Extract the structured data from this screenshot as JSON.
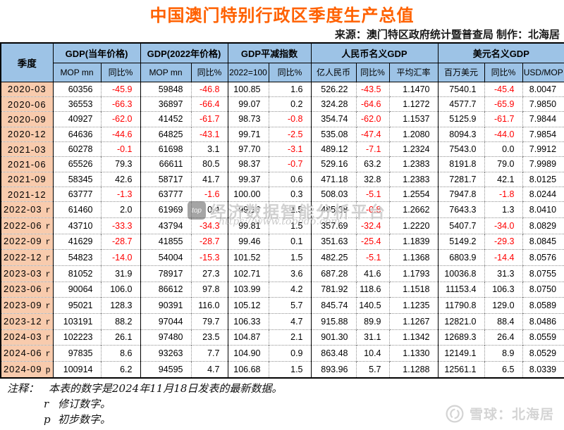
{
  "title": "中国澳门特别行政区季度生产总值",
  "source_line": "来源：澳门特区政府统计暨普查局  制作：北海居",
  "colors": {
    "title": "#FF6100",
    "header_bg": "#9DC3E6",
    "quarter_bg": "#F8CBAD",
    "negative": "#FF0000"
  },
  "chart_data": {
    "type": "table",
    "title": "中国澳门特别行政区季度生产总值",
    "quarter_header": "季度",
    "column_groups": [
      {
        "label": "GDP(当年价格)",
        "subs": [
          "MOP mn",
          "同比%"
        ]
      },
      {
        "label": "GDP(2022年价格)",
        "subs": [
          "MOP mn",
          "同比%"
        ]
      },
      {
        "label": "GDP平减指数",
        "subs": [
          "2022=100",
          "同比%"
        ]
      },
      {
        "label": "人民币名义GDP",
        "subs": [
          "亿人民币",
          "同比%",
          "平均汇率"
        ]
      },
      {
        "label": "美元名义GDP",
        "subs": [
          "百万美元",
          "同比%",
          "USD/MOP"
        ]
      }
    ],
    "rows": [
      {
        "quarter": "2020-03",
        "flag": "",
        "values": [
          "60356",
          "-45.9",
          "59848",
          "-46.8",
          "100.85",
          "1.6",
          "526.22",
          "-43.5",
          "1.1470",
          "7540.1",
          "-45.4",
          "8.0047"
        ]
      },
      {
        "quarter": "2020-06",
        "flag": "",
        "values": [
          "36553",
          "-66.3",
          "36897",
          "-66.4",
          "99.07",
          "0.2",
          "324.28",
          "-64.6",
          "1.1272",
          "4577.7",
          "-65.9",
          "7.9850"
        ]
      },
      {
        "quarter": "2020-09",
        "flag": "",
        "values": [
          "40927",
          "-62.0",
          "41452",
          "-61.7",
          "98.73",
          "-0.8",
          "354.74",
          "-62.0",
          "1.1537",
          "5125.9",
          "-61.7",
          "7.9844"
        ]
      },
      {
        "quarter": "2020-12",
        "flag": "",
        "values": [
          "64636",
          "-44.6",
          "64825",
          "-43.1",
          "99.71",
          "-2.5",
          "535.08",
          "-47.4",
          "1.2080",
          "8094.3",
          "-44.0",
          "7.9854"
        ]
      },
      {
        "quarter": "2021-03",
        "flag": "",
        "values": [
          "60278",
          "-0.1",
          "61698",
          "3.1",
          "97.70",
          "-3.1",
          "489.12",
          "-7.1",
          "1.2324",
          "7543.0",
          "0.0",
          "7.9912"
        ]
      },
      {
        "quarter": "2021-06",
        "flag": "",
        "values": [
          "65526",
          "79.3",
          "66611",
          "80.5",
          "98.37",
          "-0.7",
          "529.16",
          "63.2",
          "1.2383",
          "8191.8",
          "79.0",
          "7.9989"
        ]
      },
      {
        "quarter": "2021-09",
        "flag": "",
        "values": [
          "58345",
          "42.6",
          "58717",
          "41.7",
          "99.37",
          "0.6",
          "471.18",
          "32.8",
          "1.2383",
          "7281.7",
          "42.1",
          "8.0125"
        ]
      },
      {
        "quarter": "2021-12",
        "flag": "",
        "values": [
          "63777",
          "-1.3",
          "63777",
          "-1.6",
          "100.00",
          "0.3",
          "508.03",
          "-5.1",
          "1.2554",
          "7947.8",
          "-1.8",
          "8.0244"
        ]
      },
      {
        "quarter": "2022-03",
        "flag": "r",
        "values": [
          "61460",
          "2.0",
          "61969",
          "0.4",
          "99.18",
          "1.5",
          "485.38",
          "-0.8",
          "1.2662",
          "7643.3",
          "1.3",
          "8.0410"
        ]
      },
      {
        "quarter": "2022-06",
        "flag": "r",
        "values": [
          "43710",
          "-33.3",
          "43794",
          "-34.3",
          "99.81",
          "1.5",
          "357.69",
          "-32.4",
          "1.2220",
          "5407.7",
          "-34.0",
          "8.0829"
        ]
      },
      {
        "quarter": "2022-09",
        "flag": "r",
        "values": [
          "41629",
          "-28.7",
          "41855",
          "-28.7",
          "99.46",
          "0.1",
          "351.63",
          "-25.4",
          "1.1839",
          "5149.2",
          "-29.3",
          "8.0845"
        ]
      },
      {
        "quarter": "2022-12",
        "flag": "r",
        "values": [
          "54823",
          "-14.0",
          "54004",
          "-15.3",
          "101.52",
          "1.5",
          "482.25",
          "-5.1",
          "1.1368",
          "6803.9",
          "-14.4",
          "8.0576"
        ]
      },
      {
        "quarter": "2023-03",
        "flag": "r",
        "values": [
          "81052",
          "31.9",
          "78917",
          "27.3",
          "102.71",
          "3.6",
          "687.28",
          "41.6",
          "1.1793",
          "10036.8",
          "31.3",
          "8.0755"
        ]
      },
      {
        "quarter": "2023-06",
        "flag": "r",
        "values": [
          "90064",
          "106.0",
          "86612",
          "97.8",
          "103.99",
          "4.2",
          "781.92",
          "118.6",
          "1.1518",
          "11153.4",
          "106.3",
          "8.0750"
        ]
      },
      {
        "quarter": "2023-09",
        "flag": "r",
        "values": [
          "95021",
          "128.3",
          "90391",
          "116.0",
          "105.12",
          "5.7",
          "845.74",
          "140.5",
          "1.1235",
          "11790.8",
          "129.0",
          "8.0589"
        ]
      },
      {
        "quarter": "2023-12",
        "flag": "r",
        "values": [
          "103191",
          "88.2",
          "97044",
          "79.7",
          "106.33",
          "4.7",
          "915.88",
          "89.9",
          "1.1267",
          "12821.0",
          "88.4",
          "8.0486"
        ]
      },
      {
        "quarter": "2024-03",
        "flag": "r",
        "values": [
          "102223",
          "26.1",
          "97480",
          "23.5",
          "104.87",
          "2.1",
          "901.30",
          "31.1",
          "1.1342",
          "12689.3",
          "26.4",
          "8.0559"
        ]
      },
      {
        "quarter": "2024-06",
        "flag": "r",
        "values": [
          "97835",
          "8.6",
          "93263",
          "7.7",
          "104.90",
          "0.9",
          "863.48",
          "10.4",
          "1.1330",
          "12149.1",
          "8.9",
          "8.0529"
        ]
      },
      {
        "quarter": "2024-09",
        "flag": "p",
        "values": [
          "100914",
          "6.2",
          "94595",
          "4.7",
          "106.68",
          "1.5",
          "893.96",
          "5.7",
          "1.1288",
          "12561.1",
          "6.5",
          "8.0339"
        ]
      }
    ]
  },
  "notes": {
    "label": "注释：",
    "main": "本表的数字是2024年11月18日发表的最新数据。",
    "r_flag": "r",
    "r_text": "修订数字。",
    "p_flag": "p",
    "p_text": "初步数字。"
  },
  "watermarks": {
    "center_logo": "top",
    "center_text": "经济数据智能分析平台",
    "center_url": "https://www.topedb.com",
    "corner_text": "雪球：北海居"
  }
}
